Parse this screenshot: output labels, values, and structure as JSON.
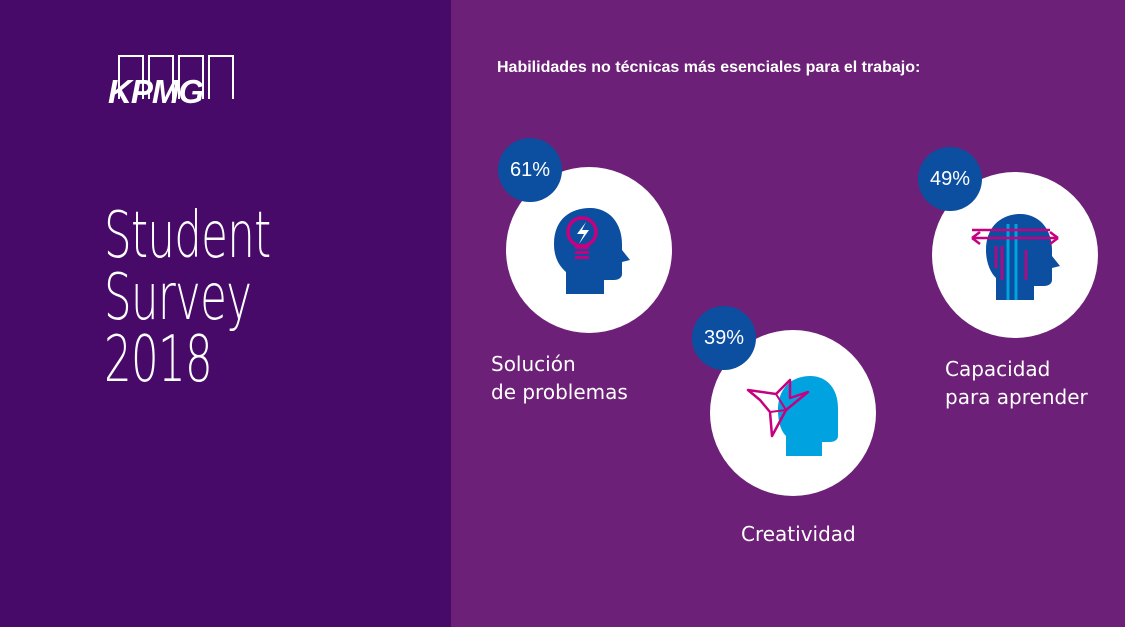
{
  "brand": {
    "logo_text": "KPMG"
  },
  "title": {
    "line1": "Student",
    "line2": "Survey",
    "line3": "2018"
  },
  "headline": "Habilidades no técnicas más esenciales para el trabajo:",
  "skills": [
    {
      "percent": "61%",
      "label_line1": "Solución",
      "label_line2": "de problemas",
      "icon": "lightbulb-head-icon"
    },
    {
      "percent": "39%",
      "label_line1": "Creatividad",
      "icon": "bird-head-icon"
    },
    {
      "percent": "49%",
      "label_line1": "Capacidad",
      "label_line2": "para aprender",
      "icon": "arrows-head-icon"
    }
  ],
  "colors": {
    "left_panel": "#470a68",
    "right_panel": "#6d2077",
    "badge": "#0c4ea0",
    "head_dark": "#0c4ea0",
    "head_light": "#00a3e0",
    "accent": "#c6007e"
  }
}
